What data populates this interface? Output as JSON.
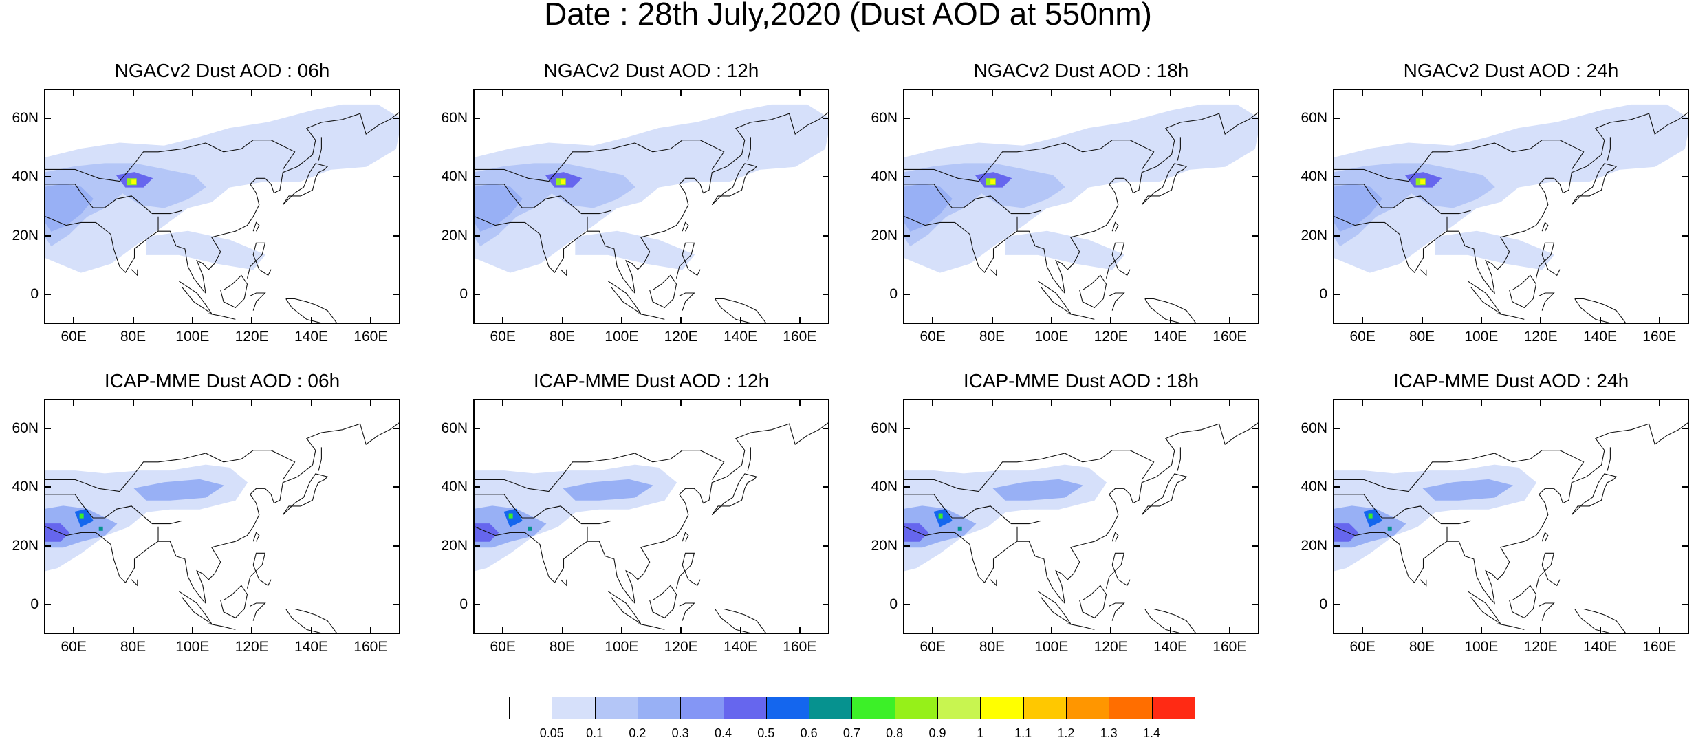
{
  "title": "Date : 28th July,2020 (Dust AOD at 550nm)",
  "panels": [
    {
      "title": "NGACv2 Dust AOD : 06h",
      "model": "ngac",
      "hour": "06h"
    },
    {
      "title": "NGACv2 Dust AOD : 12h",
      "model": "ngac",
      "hour": "12h"
    },
    {
      "title": "NGACv2 Dust AOD : 18h",
      "model": "ngac",
      "hour": "18h"
    },
    {
      "title": "NGACv2 Dust AOD : 24h",
      "model": "ngac",
      "hour": "24h"
    },
    {
      "title": "ICAP-MME Dust AOD : 06h",
      "model": "icap",
      "hour": "06h"
    },
    {
      "title": "ICAP-MME Dust AOD : 12h",
      "model": "icap",
      "hour": "12h"
    },
    {
      "title": "ICAP-MME Dust AOD : 18h",
      "model": "icap",
      "hour": "18h"
    },
    {
      "title": "ICAP-MME Dust AOD : 24h",
      "model": "icap",
      "hour": "24h"
    }
  ],
  "axes": {
    "lat_ticks": [
      "60N",
      "40N",
      "20N",
      "0"
    ],
    "lat_values": [
      60,
      40,
      20,
      0
    ],
    "lon_ticks": [
      "60E",
      "80E",
      "100E",
      "120E",
      "140E",
      "160E"
    ],
    "lon_values": [
      60,
      80,
      100,
      120,
      140,
      160
    ],
    "lon_range": [
      50,
      170
    ],
    "lat_range": [
      -10,
      70
    ]
  },
  "colorbar": {
    "labels": [
      "0.05",
      "0.1",
      "0.2",
      "0.3",
      "0.4",
      "0.5",
      "0.6",
      "0.7",
      "0.8",
      "0.9",
      "1",
      "1.1",
      "1.2",
      "1.3",
      "1.4"
    ],
    "colors": [
      "#ffffff",
      "#d6e0fa",
      "#b4c6f7",
      "#98b0f5",
      "#8496f5",
      "#6666ee",
      "#1466ee",
      "#06928f",
      "#3cf028",
      "#96f019",
      "#c8f550",
      "#ffff00",
      "#ffc800",
      "#ff9600",
      "#ff6e00",
      "#ff2a14"
    ]
  }
}
